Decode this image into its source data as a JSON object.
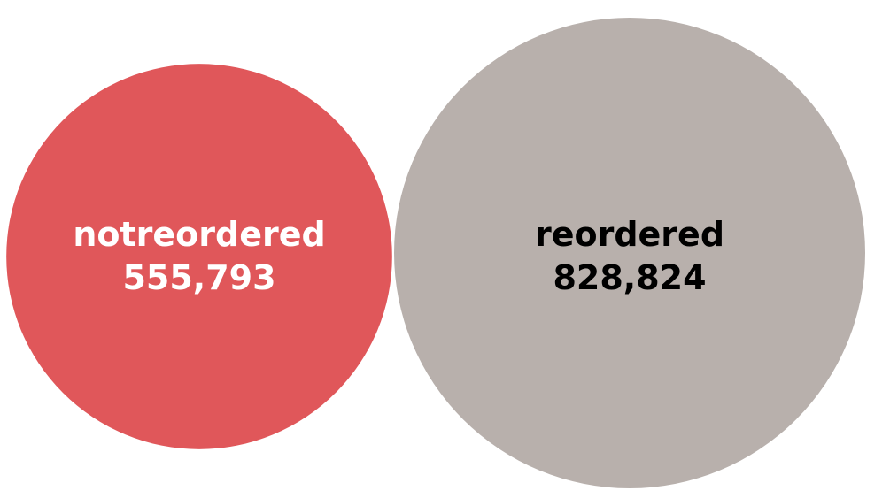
{
  "chart_data": {
    "type": "bubble",
    "title": "",
    "categories": [
      "notreordered",
      "reordered"
    ],
    "values": [
      555793,
      828824
    ],
    "value_labels": [
      "555,793",
      "828,824"
    ],
    "colors": [
      "#e0575a",
      "#b8b0ac"
    ],
    "label_colors": [
      "#ffffff",
      "#000000"
    ],
    "legend": "none"
  }
}
